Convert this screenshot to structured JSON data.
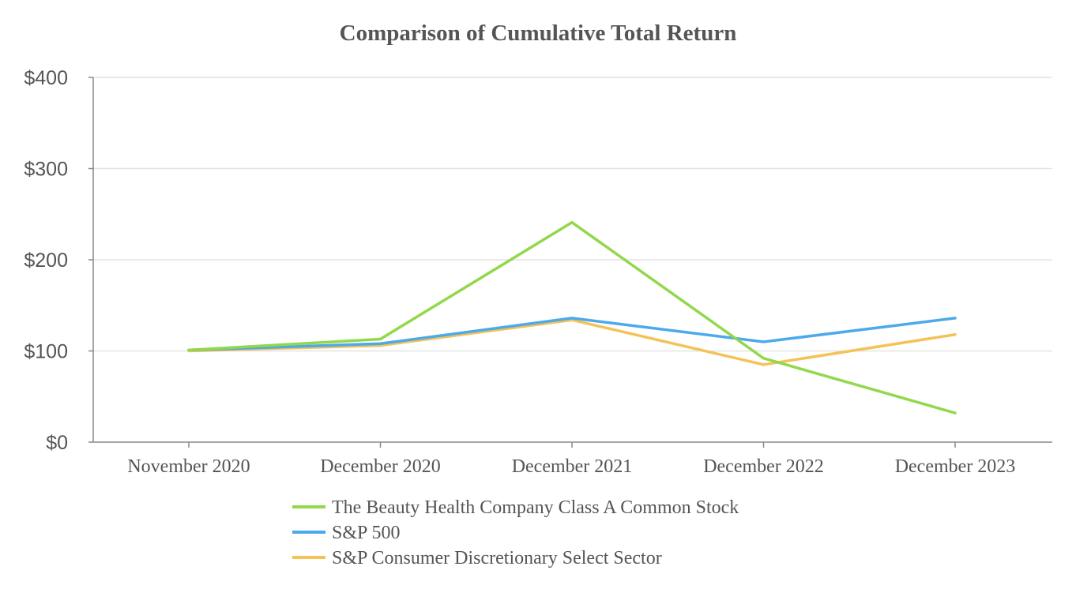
{
  "chart_data": {
    "type": "line",
    "title": "Comparison of Cumulative Total Return",
    "xlabel": "",
    "ylabel": "",
    "categories": [
      "November 2020",
      "December 2020",
      "December 2021",
      "December 2022",
      "December 2023"
    ],
    "y_ticks": [
      "$0",
      "$100",
      "$200",
      "$300",
      "$400"
    ],
    "ylim": [
      0,
      400
    ],
    "grid": true,
    "legend_position": "bottom",
    "series": [
      {
        "name": "The Beauty Health Company Class A Common Stock",
        "color": "#92D84B",
        "values": [
          101,
          113,
          241,
          92,
          32
        ]
      },
      {
        "name": "S&P 500",
        "color": "#4BA9EC",
        "values": [
          101,
          108,
          136,
          110,
          136
        ]
      },
      {
        "name": "S&P Consumer Discretionary Select Sector",
        "color": "#F5C259",
        "values": [
          100,
          106,
          134,
          85,
          118
        ]
      }
    ]
  }
}
